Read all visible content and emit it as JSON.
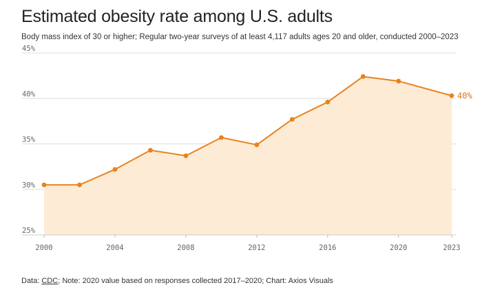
{
  "title": "Estimated obesity rate among U.S. adults",
  "subtitle": "Body mass index of 30 or higher; Regular two-year surveys of at least 4,117 adults ages 20 and older, conducted 2000–2023",
  "footer": {
    "prefix": "Data: ",
    "source": "CDC",
    "rest": "; Note: 2020 value based on responses collected 2017–2020; Chart: Axios Visuals"
  },
  "colors": {
    "line": "#e8821e",
    "area": "#fdebd6",
    "grid": "#dddddd"
  },
  "chart_data": {
    "type": "area",
    "title": "Estimated obesity rate among U.S. adults",
    "xlabel": "",
    "ylabel": "",
    "x": [
      2000,
      2002,
      2004,
      2006,
      2008,
      2010,
      2012,
      2014,
      2016,
      2018,
      2020,
      2023
    ],
    "values": [
      30.5,
      30.5,
      32.2,
      34.3,
      33.7,
      35.7,
      34.9,
      37.7,
      39.6,
      42.4,
      41.9,
      40.3
    ],
    "ylim": [
      25,
      45
    ],
    "yticks": [
      25,
      30,
      35,
      40,
      45
    ],
    "ytick_labels": [
      "25%",
      "30%",
      "35%",
      "40%",
      "45%"
    ],
    "xticks": [
      2000,
      2004,
      2008,
      2012,
      2016,
      2020,
      2023
    ],
    "xtick_labels": [
      "2000",
      "2004",
      "2008",
      "2012",
      "2016",
      "2020",
      "2023"
    ],
    "end_label": "40%",
    "grid": true
  }
}
